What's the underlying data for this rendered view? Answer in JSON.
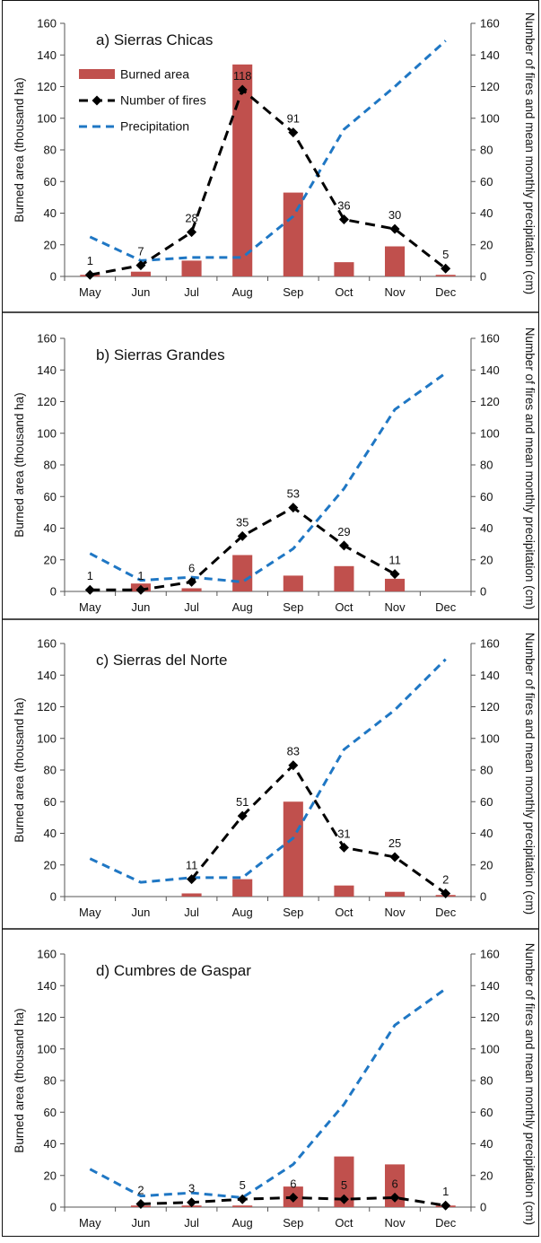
{
  "chart_data": [
    {
      "type": "bar",
      "title": "a) Sierras Chicas",
      "categories": [
        "May",
        "Jun",
        "Jul",
        "Aug",
        "Sep",
        "Oct",
        "Nov",
        "Dec"
      ],
      "ylabel": "Burned area (thousand ha)",
      "y2label": "Number of fires and mean monthly precipitation (cm)",
      "ylim": [
        0,
        160
      ],
      "y2lim": [
        0,
        160
      ],
      "yticks": [
        0,
        20,
        40,
        60,
        80,
        100,
        120,
        140,
        160
      ],
      "legend": {
        "placement": "top-left",
        "entries": [
          "Burned area",
          "Number of fires",
          "Precipitation"
        ]
      },
      "series": [
        {
          "name": "Burned area",
          "type": "bar",
          "axis": "left",
          "values": [
            1,
            3,
            10,
            134,
            53,
            9,
            19,
            1
          ]
        },
        {
          "name": "Number of fires",
          "type": "line",
          "axis": "right",
          "values": [
            1,
            7,
            28,
            118,
            91,
            36,
            30,
            5
          ],
          "labels": [
            "1",
            "7",
            "28",
            "118",
            "91",
            "36",
            "30",
            "5"
          ]
        },
        {
          "name": "Precipitation",
          "type": "line",
          "axis": "right",
          "values": [
            25,
            10,
            12,
            12,
            38,
            93,
            120,
            149
          ]
        }
      ],
      "colors": {
        "bar": "#c0504d",
        "fires": "#000000",
        "precip": "#1f77c4"
      }
    },
    {
      "type": "bar",
      "title": "b) Sierras Grandes",
      "categories": [
        "May",
        "Jun",
        "Jul",
        "Aug",
        "Sep",
        "Oct",
        "Nov",
        "Dec"
      ],
      "ylabel": "Burned area (thousand ha)",
      "y2label": "Number of fires and mean monthly precipitation (cm)",
      "ylim": [
        0,
        160
      ],
      "y2lim": [
        0,
        160
      ],
      "yticks": [
        0,
        20,
        40,
        60,
        80,
        100,
        120,
        140,
        160
      ],
      "series": [
        {
          "name": "Burned area",
          "type": "bar",
          "axis": "left",
          "values": [
            0,
            5,
            2,
            23,
            10,
            16,
            8,
            0
          ]
        },
        {
          "name": "Number of fires",
          "type": "line",
          "axis": "right",
          "values": [
            1,
            1,
            6,
            35,
            53,
            29,
            11,
            null
          ],
          "labels": [
            "1",
            "1",
            "6",
            "35",
            "53",
            "29",
            "11",
            ""
          ]
        },
        {
          "name": "Precipitation",
          "type": "line",
          "axis": "right",
          "values": [
            24,
            7,
            9,
            6,
            27,
            65,
            115,
            138
          ]
        }
      ],
      "colors": {
        "bar": "#c0504d",
        "fires": "#000000",
        "precip": "#1f77c4"
      }
    },
    {
      "type": "bar",
      "title": "c) Sierras del Norte",
      "categories": [
        "May",
        "Jun",
        "Jul",
        "Aug",
        "Sep",
        "Oct",
        "Nov",
        "Dec"
      ],
      "ylabel": "Burned area (thousand ha)",
      "y2label": "Number of fires and mean monthly precipitation (cm)",
      "ylim": [
        0,
        160
      ],
      "y2lim": [
        0,
        160
      ],
      "yticks": [
        0,
        20,
        40,
        60,
        80,
        100,
        120,
        140,
        160
      ],
      "series": [
        {
          "name": "Burned area",
          "type": "bar",
          "axis": "left",
          "values": [
            0,
            0,
            2,
            11,
            60,
            7,
            3,
            1
          ]
        },
        {
          "name": "Number of fires",
          "type": "line",
          "axis": "right",
          "values": [
            null,
            null,
            11,
            51,
            83,
            31,
            25,
            2
          ],
          "labels": [
            "",
            "",
            "11",
            "51",
            "83",
            "31",
            "25",
            "2"
          ]
        },
        {
          "name": "Precipitation",
          "type": "line",
          "axis": "right",
          "values": [
            24,
            9,
            12,
            12,
            37,
            93,
            118,
            150
          ]
        }
      ],
      "colors": {
        "bar": "#c0504d",
        "fires": "#000000",
        "precip": "#1f77c4"
      }
    },
    {
      "type": "bar",
      "title": "d) Cumbres de Gaspar",
      "categories": [
        "May",
        "Jun",
        "Jul",
        "Aug",
        "Sep",
        "Oct",
        "Nov",
        "Dec"
      ],
      "ylabel": "Burned area (thousand ha)",
      "y2label": "Number of fires and mean monthly precipitation (cm)",
      "ylim": [
        0,
        160
      ],
      "y2lim": [
        0,
        160
      ],
      "yticks": [
        0,
        20,
        40,
        60,
        80,
        100,
        120,
        140,
        160
      ],
      "series": [
        {
          "name": "Burned area",
          "type": "bar",
          "axis": "left",
          "values": [
            0,
            1,
            1,
            1,
            13,
            32,
            27,
            1
          ]
        },
        {
          "name": "Number of fires",
          "type": "line",
          "axis": "right",
          "values": [
            null,
            2,
            3,
            5,
            6,
            5,
            6,
            1
          ],
          "labels": [
            "",
            "2",
            "3",
            "5",
            "6",
            "5",
            "6",
            "1"
          ]
        },
        {
          "name": "Precipitation",
          "type": "line",
          "axis": "right",
          "values": [
            24,
            7,
            9,
            6,
            27,
            65,
            115,
            138
          ]
        }
      ],
      "colors": {
        "bar": "#c0504d",
        "fires": "#000000",
        "precip": "#1f77c4"
      }
    }
  ]
}
